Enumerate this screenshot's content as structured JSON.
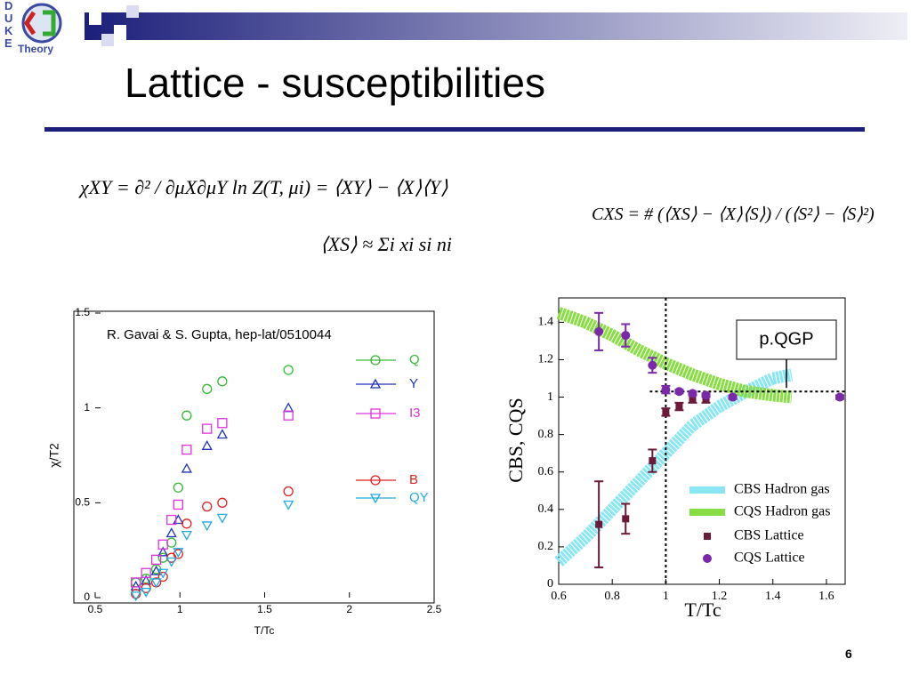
{
  "logo_side": "DUKE",
  "logo_text": "Theory",
  "title": "Lattice - susceptibilities",
  "equations": [
    "χXY = ∂² / ∂μX∂μY ln Z(T, μi) = ⟨XY⟩ − ⟨X⟩⟨Y⟩",
    "⟨XS⟩ ≈ Σi xi si ni",
    "CXS = # (⟨XS⟩ − ⟨X⟩⟨S⟩) / (⟨S²⟩ − ⟨S⟩²)"
  ],
  "page_number": "6",
  "chart_data": [
    {
      "type": "scatter",
      "annotation": "R. Gavai & S. Gupta, hep-lat/0510044",
      "x_label": "T/Tc",
      "y_label": "χ/T2",
      "xlim": [
        0.5,
        2.5
      ],
      "ylim": [
        0,
        1.5
      ],
      "xticks": [
        0.5,
        1,
        1.5,
        2,
        2.5
      ],
      "yticks": [
        0,
        0.5,
        1,
        1.5
      ],
      "legend": "upper right",
      "series": [
        {
          "name": "Q",
          "color": "#33bb33",
          "marker": "circle",
          "x": [
            0.74,
            0.8,
            0.86,
            0.9,
            0.95,
            0.99,
            1.04,
            1.16,
            1.25,
            1.64
          ],
          "values": [
            0.08,
            0.1,
            0.15,
            0.21,
            0.29,
            0.58,
            0.96,
            1.1,
            1.14,
            1.2
          ]
        },
        {
          "name": "Y",
          "color": "#2233bb",
          "marker": "triangle-up",
          "x": [
            0.74,
            0.8,
            0.86,
            0.9,
            0.95,
            0.99,
            1.04,
            1.16,
            1.25,
            1.64
          ],
          "values": [
            0.06,
            0.09,
            0.14,
            0.24,
            0.34,
            0.41,
            0.68,
            0.8,
            0.86,
            1.0
          ]
        },
        {
          "name": "I3",
          "color": "#dd33dd",
          "marker": "square",
          "x": [
            0.74,
            0.8,
            0.86,
            0.9,
            0.95,
            0.99,
            1.04,
            1.16,
            1.25,
            1.64
          ],
          "values": [
            0.08,
            0.13,
            0.2,
            0.28,
            0.41,
            0.49,
            0.78,
            0.89,
            0.92,
            0.96
          ]
        },
        {
          "name": "B",
          "color": "#dd2222",
          "marker": "circle",
          "x": [
            0.74,
            0.8,
            0.86,
            0.9,
            0.95,
            0.99,
            1.04,
            1.16,
            1.25,
            1.64
          ],
          "values": [
            0.02,
            0.05,
            0.08,
            0.11,
            0.21,
            0.23,
            0.39,
            0.48,
            0.5,
            0.56
          ]
        },
        {
          "name": "QY",
          "color": "#22aadd",
          "marker": "triangle-down",
          "x": [
            0.74,
            0.8,
            0.86,
            0.9,
            0.95,
            0.99,
            1.04,
            1.16,
            1.25,
            1.64
          ],
          "values": [
            0.01,
            0.03,
            0.08,
            0.13,
            0.19,
            0.24,
            0.33,
            0.38,
            0.42,
            0.49
          ]
        }
      ]
    },
    {
      "type": "scatter",
      "annotation": "p.QGP",
      "x_label": "T/Tc",
      "y_label": "CBS, CQS",
      "xlim": [
        0.6,
        1.67
      ],
      "ylim": [
        0,
        1.53
      ],
      "xticks": [
        0.6,
        0.8,
        1,
        1.2,
        1.4,
        1.6
      ],
      "yticks": [
        0,
        0.2,
        0.4,
        0.6,
        0.8,
        1,
        1.2,
        1.4
      ],
      "vline": 1,
      "hline": 1.03,
      "legend": "lower right",
      "series": [
        {
          "name": "CBS Hadron gas",
          "color": "#8ae6f2",
          "marker": "band",
          "x": [
            0.6,
            0.7,
            0.8,
            0.9,
            1.0,
            1.1,
            1.2,
            1.3,
            1.4,
            1.47
          ],
          "values": [
            0.12,
            0.25,
            0.4,
            0.55,
            0.7,
            0.85,
            0.95,
            1.03,
            1.1,
            1.12
          ]
        },
        {
          "name": "CQS Hadron gas",
          "color": "#88dd44",
          "marker": "band",
          "x": [
            0.6,
            0.7,
            0.8,
            0.9,
            1.0,
            1.1,
            1.2,
            1.3,
            1.4,
            1.47
          ],
          "values": [
            1.45,
            1.4,
            1.33,
            1.25,
            1.18,
            1.12,
            1.07,
            1.03,
            1.01,
            1.0
          ]
        },
        {
          "name": "CBS Lattice",
          "color": "#6b1a3a",
          "marker": "filled-square",
          "x": [
            0.75,
            0.85,
            0.95,
            1.0,
            1.05,
            1.1,
            1.15
          ],
          "values": [
            0.32,
            0.35,
            0.66,
            0.92,
            0.95,
            0.99,
            0.99
          ],
          "errors": [
            0.23,
            0.08,
            0.06,
            0.02,
            0.02,
            0.02,
            0.02
          ]
        },
        {
          "name": "CQS Lattice",
          "color": "#7a2aa8",
          "marker": "filled-circle",
          "x": [
            0.75,
            0.85,
            0.95,
            1.0,
            1.05,
            1.1,
            1.15,
            1.25,
            1.65
          ],
          "values": [
            1.35,
            1.33,
            1.17,
            1.04,
            1.03,
            1.02,
            1.01,
            1.0,
            1.0
          ],
          "errors": [
            0.1,
            0.06,
            0.04,
            0.02,
            0.01,
            0.01,
            0.01,
            0.01,
            0.01
          ]
        }
      ]
    }
  ]
}
